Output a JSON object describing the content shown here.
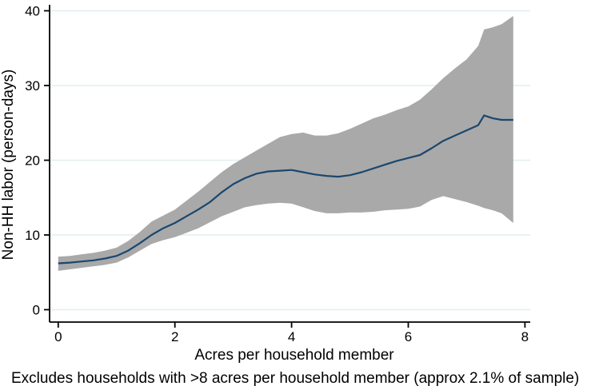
{
  "figure": {
    "background_color": "#ffffff"
  },
  "chart_data": {
    "type": "line",
    "title": "",
    "xlabel": "Acres per household member",
    "ylabel": "Non-HH labor (person-days)",
    "note": "Excludes households with >8 acres per household member (approx 2.1% of sample)",
    "xlim": [
      0,
      8.2
    ],
    "ylim": [
      0,
      40
    ],
    "xticks": [
      0,
      2,
      4,
      6,
      8
    ],
    "yticks": [
      0,
      10,
      20,
      30,
      40
    ],
    "grid": "horizontal-light",
    "legend": "none",
    "colors": {
      "mean_line": "#1a476f",
      "ci_band": "#a9a9a9",
      "gridline": "#e1eef0",
      "axis": "#000000",
      "background": "#ffffff"
    },
    "x": [
      0,
      0.2,
      0.4,
      0.6,
      0.8,
      1.0,
      1.2,
      1.4,
      1.6,
      1.8,
      2.0,
      2.2,
      2.4,
      2.6,
      2.8,
      3.0,
      3.2,
      3.4,
      3.6,
      3.8,
      4.0,
      4.2,
      4.4,
      4.6,
      4.8,
      5.0,
      5.2,
      5.4,
      5.6,
      5.8,
      6.0,
      6.2,
      6.4,
      6.6,
      6.8,
      7.0,
      7.2,
      7.3,
      7.45,
      7.6,
      7.8
    ],
    "series": [
      {
        "name": "mean",
        "values": [
          6.2,
          6.3,
          6.45,
          6.6,
          6.85,
          7.2,
          7.9,
          8.9,
          10.0,
          10.9,
          11.6,
          12.5,
          13.4,
          14.4,
          15.7,
          16.8,
          17.6,
          18.2,
          18.5,
          18.6,
          18.7,
          18.4,
          18.1,
          17.9,
          17.8,
          18.0,
          18.4,
          18.9,
          19.4,
          19.9,
          20.3,
          20.7,
          21.6,
          22.6,
          23.3,
          24.0,
          24.7,
          26.0,
          25.6,
          25.4,
          25.4
        ]
      },
      {
        "name": "ci_upper",
        "values": [
          7.1,
          7.2,
          7.4,
          7.6,
          7.9,
          8.3,
          9.2,
          10.4,
          11.8,
          12.6,
          13.4,
          14.6,
          15.8,
          17.1,
          18.4,
          19.5,
          20.4,
          21.3,
          22.2,
          23.1,
          23.5,
          23.7,
          23.3,
          23.3,
          23.6,
          24.2,
          24.9,
          25.6,
          26.1,
          26.7,
          27.2,
          28.1,
          29.5,
          31.0,
          32.3,
          33.5,
          35.3,
          37.5,
          37.8,
          38.2,
          39.3
        ]
      },
      {
        "name": "ci_lower",
        "values": [
          5.2,
          5.4,
          5.6,
          5.8,
          6.0,
          6.3,
          7.0,
          7.9,
          8.8,
          9.3,
          9.7,
          10.3,
          10.9,
          11.7,
          12.5,
          13.1,
          13.7,
          14.0,
          14.2,
          14.3,
          14.2,
          13.7,
          13.2,
          12.9,
          12.9,
          13.0,
          13.0,
          13.1,
          13.3,
          13.4,
          13.5,
          13.8,
          14.7,
          15.2,
          14.8,
          14.4,
          13.9,
          13.6,
          13.3,
          12.9,
          11.6
        ]
      }
    ]
  }
}
